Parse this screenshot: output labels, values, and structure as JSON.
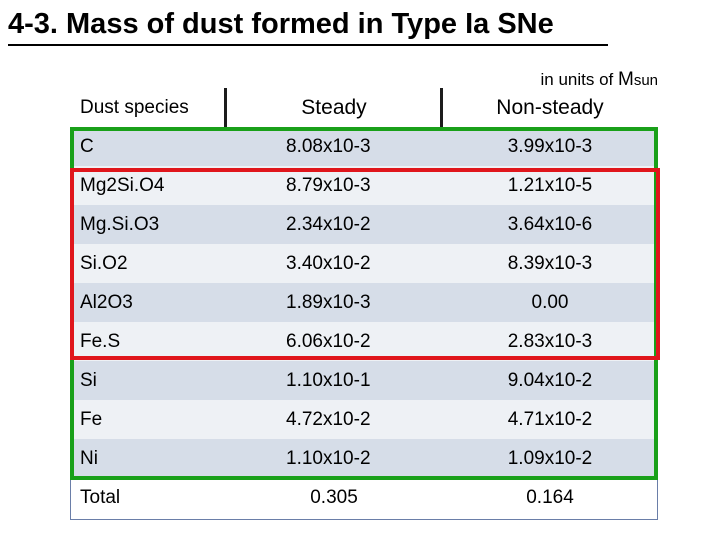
{
  "title": "4-3. Mass of dust formed in Type Ia SNe",
  "units_note": {
    "prefix": "in units of ",
    "symbol": "M",
    "subscript": "sun"
  },
  "table": {
    "headers": [
      "Dust species",
      "Steady",
      "Non-steady"
    ],
    "rows": [
      {
        "species": "C",
        "steady": "8.08x10-3",
        "nonsteady": "3.99x10-3"
      },
      {
        "species": "Mg2Si.O4",
        "steady": "8.79x10-3",
        "nonsteady": "1.21x10-5"
      },
      {
        "species": "Mg.Si.O3",
        "steady": "2.34x10-2",
        "nonsteady": "3.64x10-6"
      },
      {
        "species": "Si.O2",
        "steady": "3.40x10-2",
        "nonsteady": "8.39x10-3"
      },
      {
        "species": "Al2O3",
        "steady": "1.89x10-3",
        "nonsteady": "0.00"
      },
      {
        "species": "Fe.S",
        "steady": "6.06x10-2",
        "nonsteady": "2.83x10-3"
      },
      {
        "species": "Si",
        "steady": "1.10x10-1",
        "nonsteady": "9.04x10-2"
      },
      {
        "species": "Fe",
        "steady": "4.72x10-2",
        "nonsteady": "4.71x10-2"
      },
      {
        "species": "Ni",
        "steady": "1.10x10-2",
        "nonsteady": "1.09x10-2"
      }
    ],
    "total": {
      "label": "Total",
      "steady": "0.305",
      "nonsteady": "0.164"
    }
  },
  "colors": {
    "row_dark": "#d6dde8",
    "row_light": "#eef1f5",
    "green_box": "#19a019",
    "red_box": "#e0161c"
  }
}
